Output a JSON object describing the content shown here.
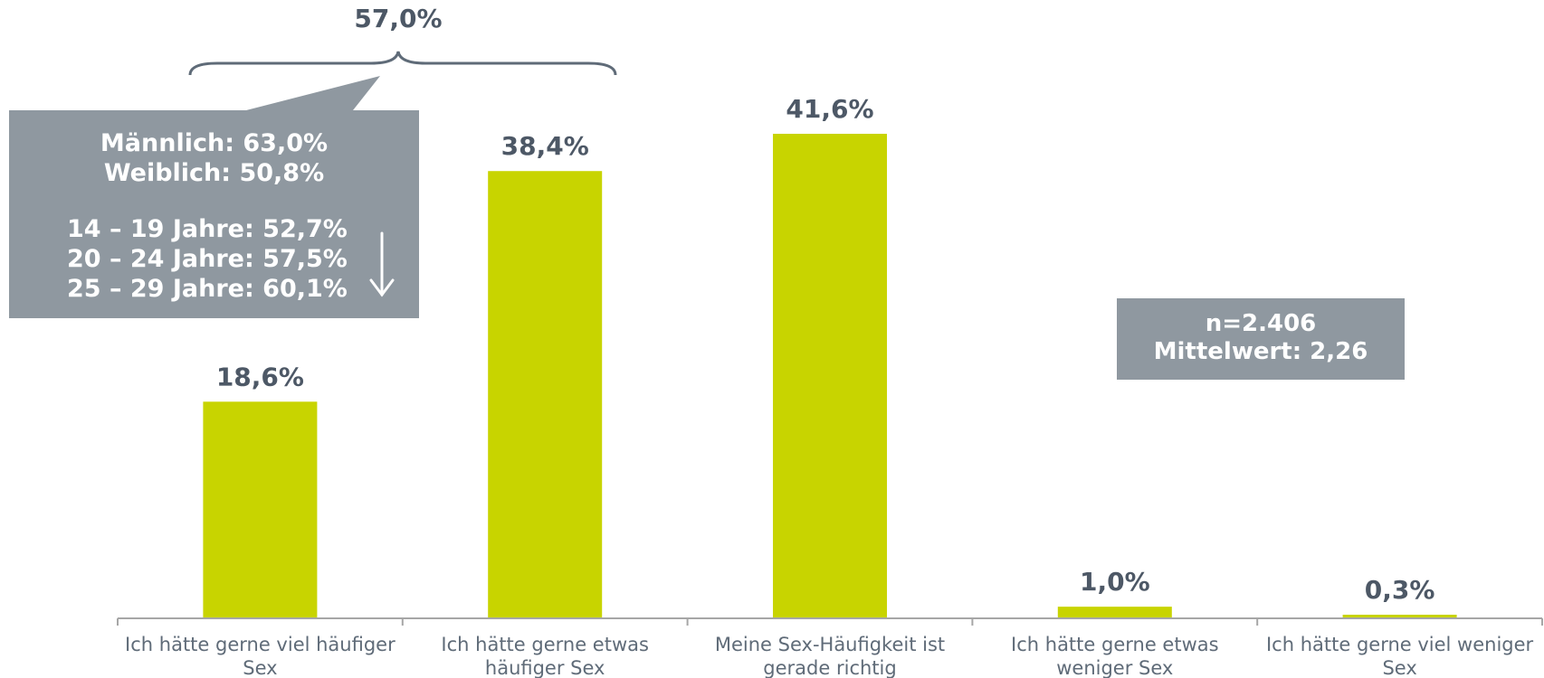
{
  "chart_data": {
    "type": "bar",
    "categories": [
      [
        "Ich hätte gerne viel häufiger",
        "Sex"
      ],
      [
        "Ich hätte gerne etwas",
        "häufiger Sex"
      ],
      [
        "Meine Sex-Häufigkeit ist",
        "gerade richtig"
      ],
      [
        "Ich hätte gerne etwas",
        "weniger Sex"
      ],
      [
        "Ich hätte gerne viel weniger",
        "Sex"
      ]
    ],
    "values": [
      18.6,
      38.4,
      41.6,
      1.0,
      0.3
    ],
    "value_labels": [
      "18,6%",
      "38,4%",
      "41,6%",
      "1,0%",
      "0,3%"
    ],
    "ylim": [
      0,
      41.6
    ],
    "grid": false,
    "bar_color": "#c8d400",
    "axis_color": "#a6a6a6"
  },
  "bracket": {
    "label": "57,0%",
    "spans_categories": [
      0,
      1
    ]
  },
  "callout": {
    "gender": [
      "Männlich: 63,0%",
      "Weiblich: 50,8%"
    ],
    "age": [
      "14 – 19 Jahre: 52,7%",
      "20 – 24 Jahre: 57,5%",
      "25 – 29 Jahre: 60,1%"
    ],
    "arrow_icon": "arrow-down-icon",
    "color": "#8f98a0"
  },
  "info": {
    "n": "n=2.406",
    "mean": "Mittelwert: 2,26",
    "color": "#8f98a0"
  }
}
